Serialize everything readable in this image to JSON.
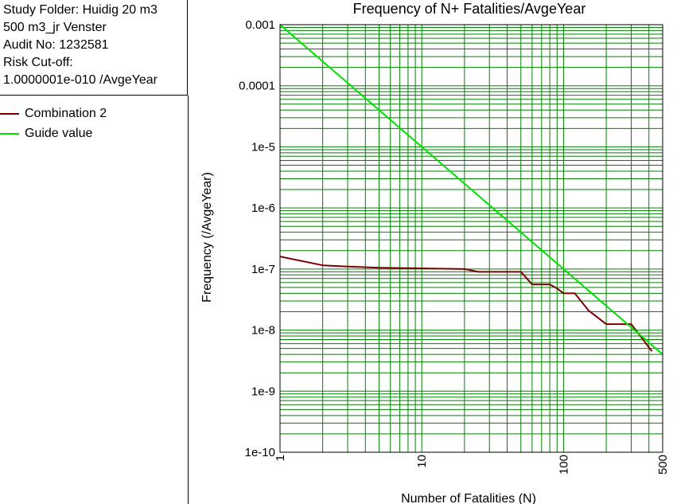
{
  "info": {
    "lines": [
      "Study Folder: Huidig 20 m3",
      "500 m3_jr Venster",
      "Audit No: 1232581",
      "Risk Cut-off:",
      "1.0000001e-010 /AvgeYear"
    ]
  },
  "legend": {
    "items": [
      {
        "label": "Combination 2",
        "color": "#7a0000"
      },
      {
        "label": "Guide value",
        "color": "#00e000"
      }
    ]
  },
  "colors": {
    "grid": "#008000",
    "frame": "#000000"
  },
  "chart_data": {
    "type": "line",
    "title": "Frequency of N+ Fatalities/AvgeYear",
    "xlabel": "Number of Fatalities (N)",
    "ylabel": "Frequency (/AvgeYear)",
    "x_scale": "log",
    "y_scale": "log",
    "xlim": [
      1,
      500
    ],
    "ylim": [
      1e-10,
      0.001
    ],
    "grid": true,
    "x_ticks": [
      {
        "value": 1,
        "label": "1"
      },
      {
        "value": 10,
        "label": "10"
      },
      {
        "value": 100,
        "label": "100"
      },
      {
        "value": 500,
        "label": "500"
      }
    ],
    "y_ticks": [
      {
        "value": 0.001,
        "label": "0.001"
      },
      {
        "value": 0.0001,
        "label": "0.0001"
      },
      {
        "value": 1e-05,
        "label": "1e-5"
      },
      {
        "value": 1e-06,
        "label": "1e-6"
      },
      {
        "value": 1e-07,
        "label": "1e-7"
      },
      {
        "value": 1e-08,
        "label": "1e-8"
      },
      {
        "value": 1e-09,
        "label": "1e-9"
      },
      {
        "value": 1e-10,
        "label": "1e-10"
      }
    ],
    "series": [
      {
        "name": "Combination 2",
        "color": "#7a0000",
        "x": [
          1,
          2,
          3,
          5,
          20,
          25,
          50,
          60,
          80,
          90,
          100,
          120,
          150,
          200,
          300,
          420
        ],
        "y": [
          1.6e-07,
          1.15e-07,
          1.1e-07,
          1.05e-07,
          1e-07,
          9e-08,
          9e-08,
          5.6e-08,
          5.6e-08,
          4.8e-08,
          4e-08,
          4e-08,
          2.1e-08,
          1.25e-08,
          1.25e-08,
          4.5e-09
        ]
      },
      {
        "name": "Guide value",
        "color": "#00e000",
        "x": [
          1,
          10,
          100,
          500
        ],
        "y": [
          0.001,
          1e-05,
          1e-07,
          4e-09
        ]
      }
    ]
  }
}
